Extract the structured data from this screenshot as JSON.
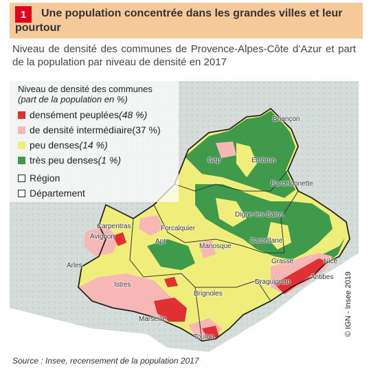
{
  "header": {
    "number": "1",
    "title": "Une population concentrée dans les grandes villes et leur pourtour"
  },
  "subtitle": "Niveau de densité des communes de Provence-Alpes-Côte d’Azur et part de la population par niveau de densité en 2017",
  "legend": {
    "title": "Niveau de densité des communes",
    "subtitle": "(part de la population en %)",
    "items": [
      {
        "label": "densément peuplées",
        "pct": "(48 %)",
        "color": "#e03034"
      },
      {
        "label": "de densité intermédiaire",
        "pct": "(37 %)",
        "color": "#f7b7b4"
      },
      {
        "label": "peu denses",
        "pct": "(14 %)",
        "color": "#f0ee7a"
      },
      {
        "label": "très peu denses",
        "pct": "(1 %)",
        "color": "#3f9a4c"
      }
    ],
    "region_label": "Région",
    "departement_label": "Département"
  },
  "cities": [
    "Briançon",
    "Gap",
    "Embrun",
    "Barcelonnette",
    "Carpentras",
    "Avignon",
    "Forcalquier",
    "Digne-les-Bains",
    "Apt",
    "Manosque",
    "Castellane",
    "Arles",
    "Istres",
    "Grasse",
    "Nice",
    "Antibes",
    "Brignoles",
    "Draguignan",
    "Marseille",
    "Toulon"
  ],
  "credit": "© IGN - Insee 2019",
  "source": "Source : Insee, recensement de la population 2017",
  "colors": {
    "header_bg": "#f6c99b",
    "badge": "#e2001a",
    "dense": "#e03034",
    "intermediate": "#f7b7b4",
    "low": "#f0ee7a",
    "very_low": "#3f9a4c",
    "outside": "#cfd8d4"
  }
}
